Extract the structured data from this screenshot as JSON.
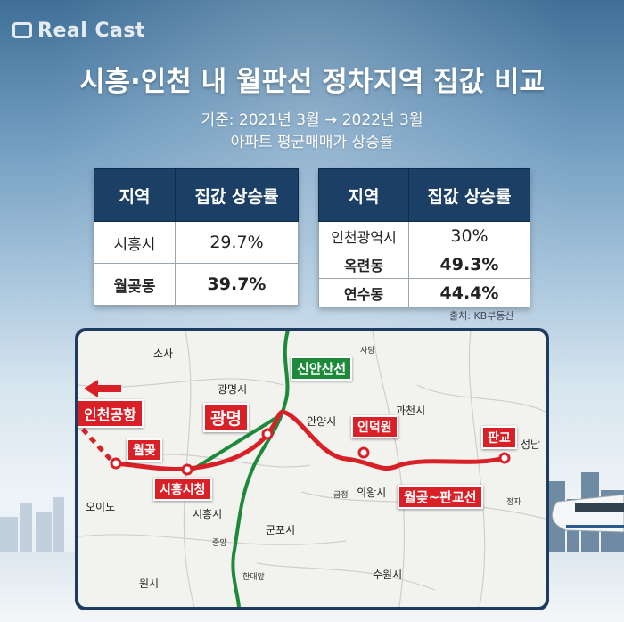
{
  "brand": "Real Cast",
  "header": {
    "title": "시흥·인천 내 월판선 정차지역 집값 비교",
    "base_period": "기준: 2021년 3월 → 2022년 3월",
    "metric": "아파트 평균매매가 상승률"
  },
  "table_left": {
    "col_region": "지역",
    "col_rate": "집값 상승률",
    "rows": [
      {
        "region": "시흥시",
        "rate": "29.7%"
      },
      {
        "region": "월곶동",
        "rate": "39.7%"
      }
    ]
  },
  "table_right": {
    "col_region": "지역",
    "col_rate": "집값 상승률",
    "rows": [
      {
        "region": "인천광역시",
        "rate": "30%"
      },
      {
        "region": "옥련동",
        "rate": "49.3%"
      },
      {
        "region": "연수동",
        "rate": "44.4%"
      }
    ]
  },
  "source": "출처: KB부동산",
  "map": {
    "stations": {
      "incheon_airport": "인천공항",
      "wolgot": "월곶",
      "siheung_cityhall": "시흥시청",
      "gwangmyeong": "광명",
      "indeogwon": "인덕원",
      "pangyo": "판교"
    },
    "lines": {
      "sinansan": "신안산선",
      "wolpan": "월곶~판교선"
    },
    "places": {
      "sosa": "소사",
      "gwangmyeong_si": "광명시",
      "anyang_si": "안양시",
      "gwacheon_si": "과천시",
      "seongnam": "성남",
      "oido": "오이도",
      "siheung_si": "시흥시",
      "uiwang_si": "의왕시",
      "gunpo_si": "군포시",
      "suwon_si": "수원시",
      "wonsi": "원시",
      "sadang": "사당",
      "jungang": "중앙",
      "handaeap": "한대앞",
      "geumjeong": "금정",
      "jeongja": "정자"
    }
  },
  "colors": {
    "header_navy": "#1c3f66",
    "line_red": "#d92027",
    "line_green": "#1d8a3a"
  }
}
